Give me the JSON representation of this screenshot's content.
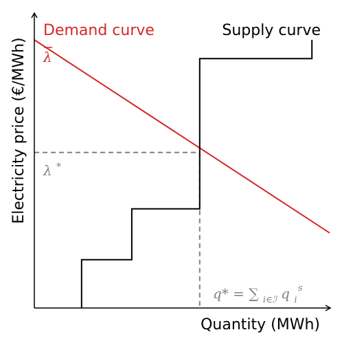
{
  "chart_data": {
    "type": "line",
    "title": "",
    "xlabel": "Quantity (MWh)",
    "ylabel": "Electricity price (€/MWh)",
    "xlim": [
      0,
      100
    ],
    "ylim": [
      0,
      100
    ],
    "grid": false,
    "ticks": "none",
    "series": [
      {
        "name": "Demand curve",
        "color": "#d62728",
        "style": "solid",
        "points": [
          [
            0,
            100
          ],
          [
            100,
            28
          ]
        ]
      },
      {
        "name": "Supply curve",
        "color": "#000000",
        "style": "step",
        "points": [
          [
            16,
            0
          ],
          [
            16,
            18
          ],
          [
            33,
            18
          ],
          [
            33,
            37
          ],
          [
            56,
            37
          ],
          [
            56,
            93
          ],
          [
            94,
            93
          ],
          [
            94,
            100
          ]
        ]
      }
    ],
    "annotations": {
      "lambda_bar": "λ",
      "lambda_star": "λ",
      "lambda_star_sup": "*",
      "q_star": "q* = ∑",
      "q_star_sub": "i∈ℐ",
      "q_star_q": " q",
      "q_star_sub2": "i",
      "q_star_sup2": "s"
    },
    "equilibrium": {
      "x": 56,
      "y": 58,
      "guide_color": "#808080",
      "guide_style": "dashed"
    }
  }
}
